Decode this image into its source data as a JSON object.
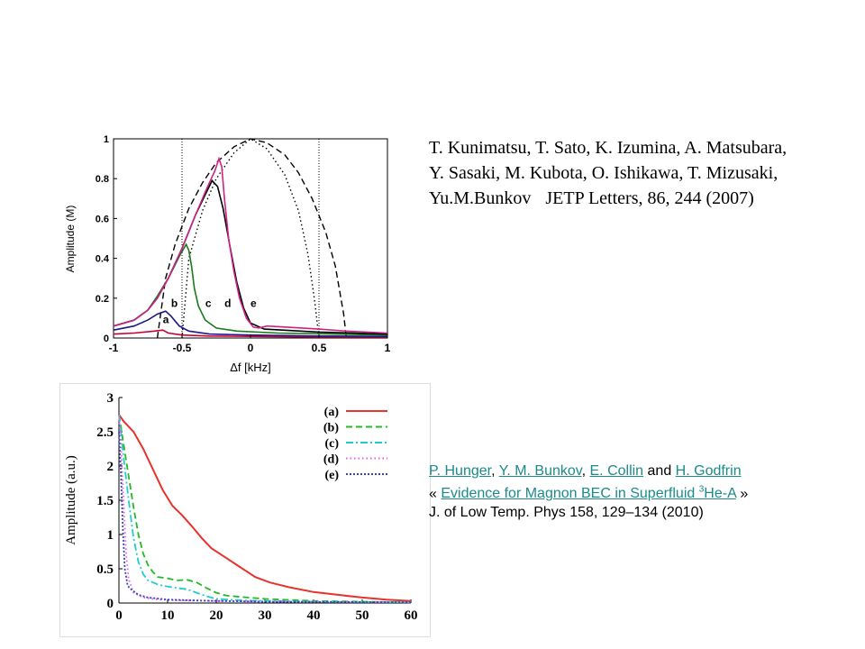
{
  "chart_data": [
    {
      "type": "line",
      "xlabel": "Δf [kHz]",
      "ylabel": "Amplitude (M)",
      "xlim": [
        -1,
        1
      ],
      "ylim": [
        0,
        1
      ],
      "x_ticks": [
        "-1",
        "-0.5",
        "0",
        "0.5",
        "1"
      ],
      "y_ticks": [
        "0",
        "0.2",
        "0.4",
        "0.6",
        "0.8",
        "1"
      ],
      "vlines": [
        -0.5,
        0.5
      ],
      "curve_labels": [
        {
          "text": "a",
          "x": -0.64,
          "y": 0.075
        },
        {
          "text": "b",
          "x": -0.58,
          "y": 0.155
        },
        {
          "text": "c",
          "x": -0.33,
          "y": 0.155
        },
        {
          "text": "d",
          "x": -0.19,
          "y": 0.155
        },
        {
          "text": "e",
          "x": 0.0,
          "y": 0.155
        }
      ],
      "series": [
        {
          "color": "#000000",
          "dash": "dashed",
          "points": [
            [
              -0.68,
              0
            ],
            [
              -0.62,
              0.3
            ],
            [
              -0.55,
              0.47
            ],
            [
              -0.45,
              0.65
            ],
            [
              -0.35,
              0.78
            ],
            [
              -0.25,
              0.88
            ],
            [
              -0.12,
              0.96
            ],
            [
              0,
              1.0
            ],
            [
              0.12,
              0.98
            ],
            [
              0.25,
              0.92
            ],
            [
              0.35,
              0.83
            ],
            [
              0.45,
              0.7
            ],
            [
              0.55,
              0.53
            ],
            [
              0.62,
              0.36
            ],
            [
              0.68,
              0.12
            ],
            [
              0.7,
              0
            ]
          ]
        },
        {
          "color": "#000000",
          "dash": "dotted",
          "points": [
            [
              -0.5,
              0
            ],
            [
              -0.45,
              0.4
            ],
            [
              -0.35,
              0.64
            ],
            [
              -0.25,
              0.8
            ],
            [
              -0.12,
              0.93
            ],
            [
              0,
              1.0
            ],
            [
              0.12,
              0.95
            ],
            [
              0.25,
              0.82
            ],
            [
              0.35,
              0.64
            ],
            [
              0.42,
              0.42
            ],
            [
              0.47,
              0.18
            ],
            [
              0.5,
              0
            ]
          ]
        },
        {
          "color": "#cc0033",
          "dash": "solid",
          "points": [
            [
              -1,
              0.02
            ],
            [
              -0.85,
              0.025
            ],
            [
              -0.7,
              0.035
            ],
            [
              -0.64,
              0.04
            ],
            [
              -0.6,
              0.025
            ],
            [
              -0.5,
              0.015
            ],
            [
              -0.3,
              0.01
            ],
            [
              0,
              0.008
            ],
            [
              0.5,
              0.005
            ],
            [
              1,
              0.005
            ]
          ]
        },
        {
          "color": "#1a1a8c",
          "dash": "solid",
          "points": [
            [
              -1,
              0.04
            ],
            [
              -0.85,
              0.06
            ],
            [
              -0.75,
              0.09
            ],
            [
              -0.68,
              0.12
            ],
            [
              -0.62,
              0.135
            ],
            [
              -0.58,
              0.11
            ],
            [
              -0.52,
              0.06
            ],
            [
              -0.45,
              0.035
            ],
            [
              -0.3,
              0.02
            ],
            [
              0,
              0.015
            ],
            [
              0.5,
              0.01
            ],
            [
              1,
              0.008
            ]
          ]
        },
        {
          "color": "#1a7a1a",
          "dash": "solid",
          "points": [
            [
              -1,
              0.06
            ],
            [
              -0.85,
              0.09
            ],
            [
              -0.75,
              0.14
            ],
            [
              -0.68,
              0.21
            ],
            [
              -0.6,
              0.3
            ],
            [
              -0.52,
              0.41
            ],
            [
              -0.47,
              0.47
            ],
            [
              -0.45,
              0.44
            ],
            [
              -0.43,
              0.36
            ],
            [
              -0.41,
              0.25
            ],
            [
              -0.38,
              0.16
            ],
            [
              -0.33,
              0.09
            ],
            [
              -0.25,
              0.05
            ],
            [
              -0.1,
              0.035
            ],
            [
              0.2,
              0.025
            ],
            [
              0.6,
              0.02
            ],
            [
              1,
              0.015
            ]
          ]
        },
        {
          "color": "#000000",
          "dash": "solid",
          "points": [
            [
              -1,
              0.06
            ],
            [
              -0.85,
              0.09
            ],
            [
              -0.75,
              0.14
            ],
            [
              -0.68,
              0.2
            ],
            [
              -0.6,
              0.3
            ],
            [
              -0.5,
              0.45
            ],
            [
              -0.4,
              0.62
            ],
            [
              -0.33,
              0.72
            ],
            [
              -0.28,
              0.79
            ],
            [
              -0.24,
              0.76
            ],
            [
              -0.2,
              0.65
            ],
            [
              -0.15,
              0.46
            ],
            [
              -0.1,
              0.28
            ],
            [
              -0.05,
              0.15
            ],
            [
              0,
              0.075
            ],
            [
              0.1,
              0.045
            ],
            [
              0.5,
              0.03
            ],
            [
              1,
              0.02
            ]
          ]
        },
        {
          "color": "#cc2288",
          "dash": "solid",
          "points": [
            [
              -1,
              0.06
            ],
            [
              -0.85,
              0.09
            ],
            [
              -0.75,
              0.14
            ],
            [
              -0.68,
              0.2
            ],
            [
              -0.6,
              0.3
            ],
            [
              -0.5,
              0.45
            ],
            [
              -0.4,
              0.62
            ],
            [
              -0.32,
              0.75
            ],
            [
              -0.26,
              0.84
            ],
            [
              -0.23,
              0.9
            ],
            [
              -0.21,
              0.86
            ],
            [
              -0.19,
              0.7
            ],
            [
              -0.16,
              0.5
            ],
            [
              -0.12,
              0.33
            ],
            [
              -0.08,
              0.2
            ],
            [
              -0.03,
              0.1
            ],
            [
              0.02,
              0.055
            ],
            [
              0.06,
              0.05
            ],
            [
              0.12,
              0.06
            ],
            [
              0.25,
              0.055
            ],
            [
              0.5,
              0.045
            ],
            [
              0.7,
              0.035
            ],
            [
              1,
              0.025
            ]
          ]
        }
      ]
    },
    {
      "type": "line",
      "xlabel": "",
      "ylabel": "Amplitude (a.u.)",
      "xlim": [
        0,
        60
      ],
      "ylim": [
        0,
        3
      ],
      "x_ticks": [
        "0",
        "10",
        "20",
        "30",
        "40",
        "50",
        "60"
      ],
      "y_ticks": [
        "0",
        "0.5",
        "1",
        "1.5",
        "2",
        "2.5",
        "3"
      ],
      "series": [
        {
          "name": "(a)",
          "color": "#e8322c",
          "dash": "solid",
          "points": [
            [
              0,
              2.75
            ],
            [
              1,
              2.65
            ],
            [
              3,
              2.5
            ],
            [
              5,
              2.25
            ],
            [
              7,
              1.95
            ],
            [
              9,
              1.65
            ],
            [
              11,
              1.42
            ],
            [
              13,
              1.28
            ],
            [
              15,
              1.12
            ],
            [
              17,
              0.95
            ],
            [
              19,
              0.8
            ],
            [
              22,
              0.66
            ],
            [
              25,
              0.52
            ],
            [
              28,
              0.38
            ],
            [
              31,
              0.3
            ],
            [
              35,
              0.23
            ],
            [
              40,
              0.16
            ],
            [
              45,
              0.12
            ],
            [
              50,
              0.08
            ],
            [
              55,
              0.05
            ],
            [
              60,
              0.03
            ]
          ]
        },
        {
          "name": "(b)",
          "color": "#22bb22",
          "dash": "dashed",
          "points": [
            [
              0,
              2.75
            ],
            [
              1,
              2.3
            ],
            [
              2,
              1.85
            ],
            [
              3,
              1.4
            ],
            [
              4,
              1.0
            ],
            [
              5,
              0.72
            ],
            [
              6,
              0.55
            ],
            [
              7,
              0.45
            ],
            [
              8,
              0.38
            ],
            [
              10,
              0.36
            ],
            [
              12,
              0.33
            ],
            [
              14,
              0.34
            ],
            [
              16,
              0.3
            ],
            [
              18,
              0.22
            ],
            [
              20,
              0.15
            ],
            [
              22,
              0.11
            ],
            [
              25,
              0.09
            ],
            [
              30,
              0.06
            ],
            [
              40,
              0.03
            ],
            [
              50,
              0.02
            ],
            [
              60,
              0.01
            ]
          ]
        },
        {
          "name": "(c)",
          "color": "#22cccc",
          "dash": "dashdot",
          "points": [
            [
              0,
              2.75
            ],
            [
              1,
              2.1
            ],
            [
              2,
              1.5
            ],
            [
              3,
              0.95
            ],
            [
              4,
              0.6
            ],
            [
              5,
              0.42
            ],
            [
              6,
              0.33
            ],
            [
              8,
              0.27
            ],
            [
              10,
              0.24
            ],
            [
              12,
              0.22
            ],
            [
              14,
              0.2
            ],
            [
              16,
              0.15
            ],
            [
              18,
              0.1
            ],
            [
              20,
              0.06
            ],
            [
              25,
              0.04
            ],
            [
              30,
              0.03
            ],
            [
              40,
              0.02
            ],
            [
              60,
              0.01
            ]
          ]
        },
        {
          "name": "(d)",
          "color": "#ee55ee",
          "dash": "dotted",
          "points": [
            [
              0,
              2.75
            ],
            [
              0.5,
              2.2
            ],
            [
              1,
              1.4
            ],
            [
              1.5,
              0.7
            ],
            [
              2,
              0.35
            ],
            [
              3,
              0.15
            ],
            [
              5,
              0.08
            ],
            [
              8,
              0.05
            ],
            [
              12,
              0.04
            ],
            [
              20,
              0.03
            ],
            [
              30,
              0.02
            ],
            [
              60,
              0.01
            ]
          ]
        },
        {
          "name": "(e)",
          "color": "#3344bb",
          "dash": "dense",
          "points": [
            [
              0,
              2.5
            ],
            [
              0.4,
              1.9
            ],
            [
              0.8,
              1.1
            ],
            [
              1.2,
              0.5
            ],
            [
              1.8,
              0.25
            ],
            [
              2.5,
              0.2
            ],
            [
              4,
              0.12
            ],
            [
              6,
              0.08
            ],
            [
              10,
              0.05
            ],
            [
              15,
              0.04
            ],
            [
              20,
              0.03
            ],
            [
              30,
              0.02
            ],
            [
              60,
              0.01
            ]
          ]
        }
      ]
    }
  ],
  "references": {
    "ref1": {
      "line1": "T. Kunimatsu, T. Sato, K. Izumina, A. Matsubara,",
      "line2": "Y. Sasaki, M. Kubota, O. Ishikawa, T. Mizusaki,",
      "line3_authors": "Yu.M.Bunkov",
      "line3_journal": "JETP Letters,  86, 244 (2007)"
    },
    "ref2": {
      "author1": "P. Hunger",
      "sep1": ", ",
      "author2": "Y. M. Bunkov",
      "sep2": ", ",
      "author3": "E. Collin",
      "sep3": " and ",
      "author4": "H. Godfrin",
      "quote_open": "« ",
      "title_prefix": "Evidence for Magnon BEC in Superfluid ",
      "title_sup": "3",
      "title_suffix": "He-A",
      "quote_close": " »",
      "journal": "J. of  Low Temp. Phys 158, 129–134 (2010)"
    }
  }
}
